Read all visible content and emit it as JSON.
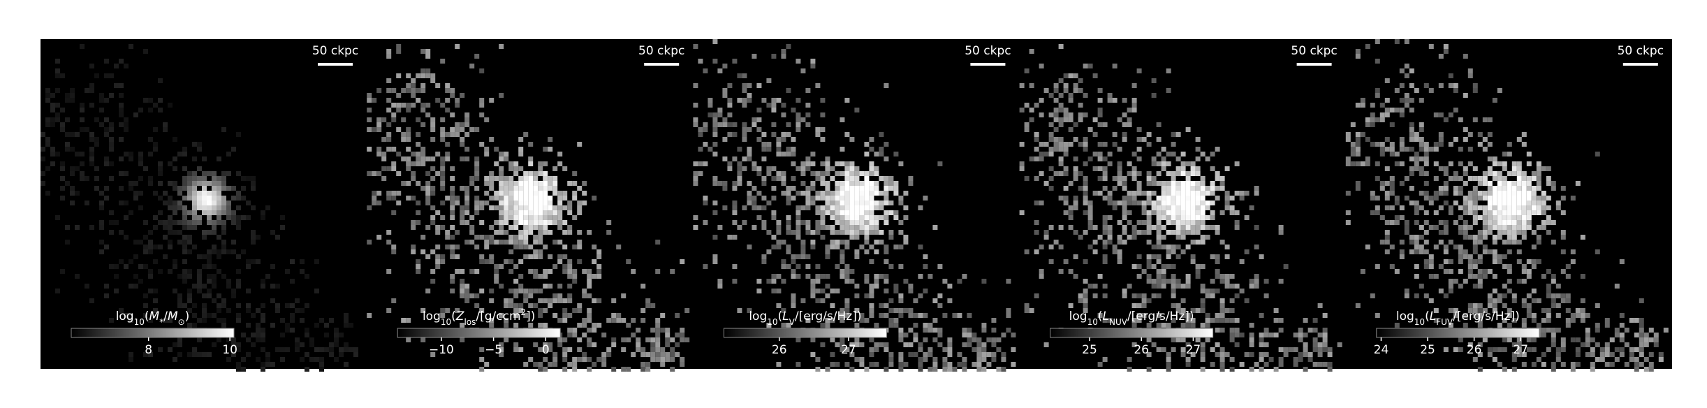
{
  "chart_data": [
    {
      "type": "image",
      "scalebar": {
        "label": "50 ckpc"
      },
      "colorbar": {
        "label": [
          {
            "text": "log"
          },
          {
            "text": "10",
            "sub": true
          },
          {
            "text": "("
          },
          {
            "text": "M",
            "italic": true
          },
          {
            "text": "*",
            "sub": true
          },
          {
            "text": "/"
          },
          {
            "text": "M",
            "italic": true
          },
          {
            "text": "⊙",
            "sub": true
          },
          {
            "text": ")"
          }
        ],
        "clim": [
          6.1,
          10.1
        ],
        "ticks": [
          8,
          10
        ]
      }
    },
    {
      "type": "image",
      "scalebar": {
        "label": "50 ckpc"
      },
      "colorbar": {
        "label": [
          {
            "text": "log"
          },
          {
            "text": "10",
            "sub": true
          },
          {
            "text": "("
          },
          {
            "text": "Z",
            "italic": true
          },
          {
            "text": "los",
            "sub": true
          },
          {
            "text": "/[g/ccm"
          },
          {
            "text": "2",
            "sup": true
          },
          {
            "text": "])"
          }
        ],
        "clim": [
          -14.2,
          1.4
        ],
        "ticks": [
          {
            "value": -10,
            "label": "−10"
          },
          {
            "value": -5,
            "label": "−5"
          },
          0
        ]
      }
    },
    {
      "type": "image",
      "scalebar": {
        "label": "50 ckpc"
      },
      "colorbar": {
        "label": [
          {
            "text": "log"
          },
          {
            "text": "10",
            "sub": true
          },
          {
            "text": "("
          },
          {
            "text": "L",
            "italic": true
          },
          {
            "text": "V",
            "sub": true
          },
          {
            "text": "/[erg/s/Hz])"
          }
        ],
        "clim": [
          25.2,
          27.55
        ],
        "ticks": [
          26,
          27
        ]
      }
    },
    {
      "type": "image",
      "scalebar": {
        "label": "50 ckpc"
      },
      "colorbar": {
        "label": [
          {
            "text": "log"
          },
          {
            "text": "10",
            "sub": true
          },
          {
            "text": "("
          },
          {
            "text": "L",
            "italic": true
          },
          {
            "text": "NUV",
            "sub": true
          },
          {
            "text": "/[erg/s/Hz])"
          }
        ],
        "clim": [
          24.24,
          27.38
        ],
        "ticks": [
          25,
          26,
          27
        ]
      }
    },
    {
      "type": "image",
      "scalebar": {
        "label": "50 ckpc"
      },
      "colorbar": {
        "label": [
          {
            "text": "log"
          },
          {
            "text": "10",
            "sub": true
          },
          {
            "text": "("
          },
          {
            "text": "L",
            "italic": true
          },
          {
            "text": "FUV",
            "sub": true
          },
          {
            "text": "/[erg/s/Hz])"
          }
        ],
        "clim": [
          23.9,
          27.4
        ],
        "ticks": [
          24,
          25,
          26,
          27
        ]
      }
    }
  ]
}
